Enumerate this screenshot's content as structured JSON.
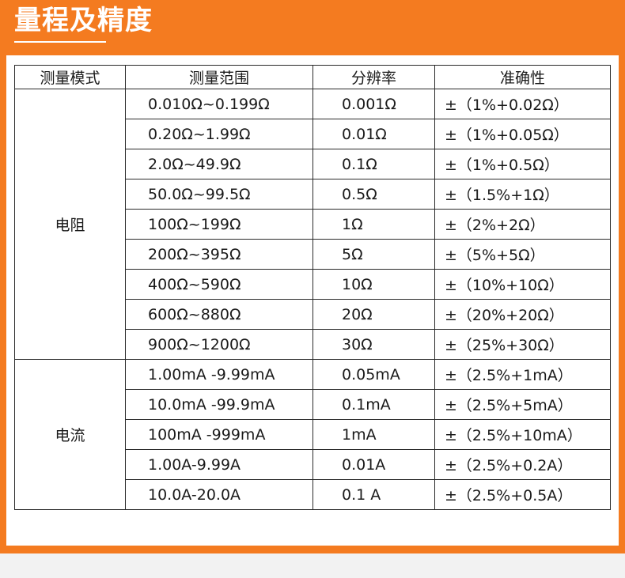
{
  "page": {
    "title": "量程及精度"
  },
  "table": {
    "headers": [
      "测量模式",
      "测量范围",
      "分辨率",
      "准确性"
    ],
    "groups": [
      {
        "mode": "电阻",
        "rows": [
          [
            "0.010Ω~0.199Ω",
            "0.001Ω",
            "±（1%+0.02Ω）"
          ],
          [
            "0.20Ω~1.99Ω",
            "0.01Ω",
            "±（1%+0.05Ω）"
          ],
          [
            "2.0Ω~49.9Ω",
            "0.1Ω",
            "±（1%+0.5Ω）"
          ],
          [
            "50.0Ω~99.5Ω",
            "0.5Ω",
            "±（1.5%+1Ω）"
          ],
          [
            "100Ω~199Ω",
            "1Ω",
            "±（2%+2Ω）"
          ],
          [
            "200Ω~395Ω",
            "5Ω",
            "±（5%+5Ω）"
          ],
          [
            "400Ω~590Ω",
            "10Ω",
            "±（10%+10Ω）"
          ],
          [
            "600Ω~880Ω",
            "20Ω",
            "±（20%+20Ω）"
          ],
          [
            "900Ω~1200Ω",
            "30Ω",
            "±（25%+30Ω）"
          ]
        ]
      },
      {
        "mode": "电流",
        "rows": [
          [
            "1.00mA -9.99mA",
            "0.05mA",
            "±（2.5%+1mA）"
          ],
          [
            "10.0mA -99.9mA",
            "0.1mA",
            "±（2.5%+5mA）"
          ],
          [
            "100mA -999mA",
            "1mA",
            "±（2.5%+10mA）"
          ],
          [
            "1.00A-9.99A",
            "0.01A",
            "±（2.5%+0.2A）"
          ],
          [
            "10.0A-20.0A",
            "0.1 A",
            "±（2.5%+0.5A）"
          ]
        ]
      }
    ]
  },
  "colors": {
    "accent": "#f47b20",
    "panel": "#ffffff",
    "border": "#2a2a2a",
    "page_bg": "#f2f2f2"
  }
}
